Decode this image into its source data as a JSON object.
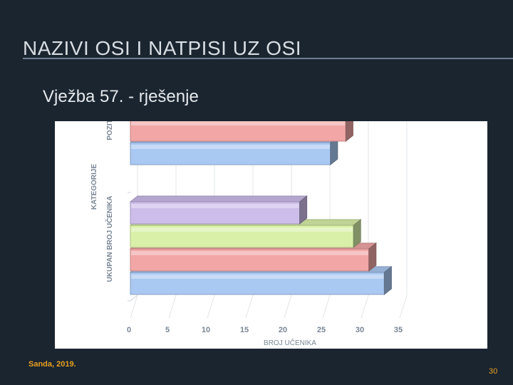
{
  "slide": {
    "title": "NAZIVI OSI I NATPISI UZ OSI",
    "subtitle": "Vježba 57.  - rješenje",
    "author": "Sanda, 2019.",
    "page_number": "30"
  },
  "chart_data": {
    "type": "bar",
    "orientation": "horizontal",
    "style": "3d",
    "xlabel": "BROJ UČENIKA",
    "y_axis_labels": [
      "UKUPAN BROJ UČENIKA",
      "KATEGORIJE",
      "POZIT"
    ],
    "xlim": [
      0,
      35
    ],
    "x_ticks": [
      "0",
      "5",
      "10",
      "15",
      "20",
      "25",
      "30",
      "35"
    ],
    "grid": true,
    "groups": [
      {
        "name": "UKUPAN BROJ UČENIKA",
        "bars": [
          {
            "value": 33,
            "color": "#a9c8f2"
          },
          {
            "value": 31,
            "color": "#f2a6a6"
          },
          {
            "value": 29,
            "color": "#d9f0a8"
          },
          {
            "value": 22,
            "color": "#cdbdea"
          }
        ]
      },
      {
        "name": "KATEGORIJE",
        "bars": []
      },
      {
        "name": "POZIT",
        "bars": [
          {
            "value": 26,
            "color": "#a9c8f2"
          },
          {
            "value": 28,
            "color": "#f2a6a6"
          }
        ]
      }
    ]
  }
}
